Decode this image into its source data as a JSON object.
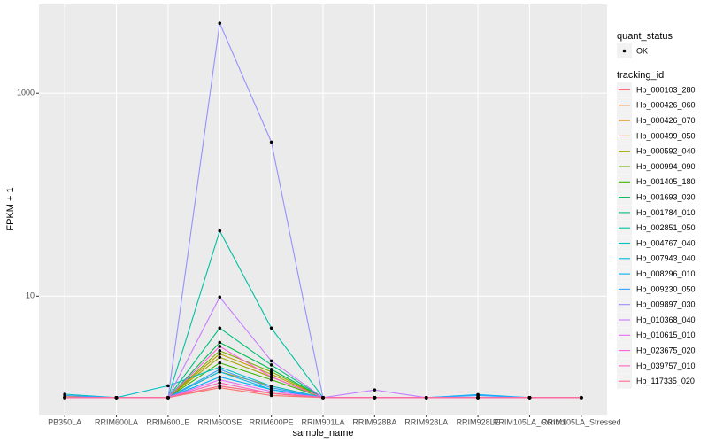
{
  "chart_data": {
    "type": "line",
    "x_label": "sample_name",
    "y_label": "FPKM + 1",
    "log_y": true,
    "grid": true,
    "point_legend_title": "quant_status",
    "point_legend_entry": "OK",
    "point_color": "#000000",
    "legend_title": "tracking_id",
    "categories": [
      "PB350LA",
      "RRIM600LA",
      "RRIM600LE",
      "RRIM600SE",
      "RRIM600PE",
      "RRIM901LA",
      "RRIM928BA",
      "RRIM928LA",
      "RRIM928LE",
      "RRIM105LA_Control",
      "RRIM105LA_Stressed"
    ],
    "ylim": [
      0.68,
      7500
    ],
    "yticks": [
      10,
      1000
    ],
    "series": [
      {
        "name": "Hb_000103_280",
        "color": "#F8766D",
        "values": [
          1.02,
          1,
          1,
          1.25,
          1.05,
          1,
          1,
          1,
          1,
          1,
          1
        ]
      },
      {
        "name": "Hb_000426_060",
        "color": "#EA8331",
        "values": [
          1.02,
          1,
          1,
          1.3,
          1.1,
          1,
          1,
          1,
          1,
          1,
          1
        ]
      },
      {
        "name": "Hb_000426_070",
        "color": "#D89000",
        "values": [
          1,
          1,
          1,
          1.8,
          1.3,
          1,
          1,
          1,
          1,
          1,
          1
        ]
      },
      {
        "name": "Hb_000499_050",
        "color": "#C09B00",
        "values": [
          1,
          1,
          1,
          2.7,
          1.7,
          1,
          1,
          1,
          1,
          1,
          1
        ]
      },
      {
        "name": "Hb_000592_040",
        "color": "#A3A500",
        "values": [
          1,
          1,
          1,
          2.5,
          1.6,
          1,
          1,
          1,
          1,
          1,
          1
        ]
      },
      {
        "name": "Hb_000994_090",
        "color": "#7CAE00",
        "values": [
          1,
          1,
          1,
          2.9,
          1.8,
          1,
          1,
          1,
          1,
          1,
          1
        ]
      },
      {
        "name": "Hb_001405_180",
        "color": "#39B600",
        "values": [
          1,
          1,
          1,
          2.2,
          1.5,
          1,
          1,
          1,
          1,
          1,
          1
        ]
      },
      {
        "name": "Hb_001693_030",
        "color": "#00BB4E",
        "values": [
          1,
          1,
          1,
          3.5,
          1.9,
          1,
          1,
          1,
          1,
          1,
          1
        ]
      },
      {
        "name": "Hb_001784_010",
        "color": "#00BF7D",
        "values": [
          1,
          1,
          1,
          4.85,
          2.1,
          1,
          1,
          1,
          1,
          1,
          1
        ]
      },
      {
        "name": "Hb_002851_050",
        "color": "#00C1A3",
        "values": [
          1,
          1,
          1,
          44,
          4.85,
          1,
          1,
          1,
          1,
          1,
          1
        ]
      },
      {
        "name": "Hb_004767_040",
        "color": "#00BFC4",
        "values": [
          1.08,
          1,
          1.31,
          2,
          1.3,
          1,
          1,
          1,
          1,
          1,
          1
        ]
      },
      {
        "name": "Hb_007943_040",
        "color": "#00BAE0",
        "values": [
          1,
          1,
          1,
          1.8,
          1.2,
          1,
          1,
          1,
          1,
          1,
          1
        ]
      },
      {
        "name": "Hb_008296_010",
        "color": "#00B0F6",
        "values": [
          1,
          1,
          1,
          1.6,
          1.2,
          1,
          1,
          1,
          1.07,
          1,
          1
        ]
      },
      {
        "name": "Hb_009230_050",
        "color": "#35A2FF",
        "values": [
          1.05,
          1,
          1,
          1.9,
          1.25,
          1,
          1,
          1,
          1.05,
          1,
          1
        ]
      },
      {
        "name": "Hb_009897_030",
        "color": "#9590FF",
        "values": [
          1,
          1,
          1,
          4900,
          330,
          1,
          1,
          1,
          1,
          1,
          1
        ]
      },
      {
        "name": "Hb_010368_040",
        "color": "#C77CFF",
        "values": [
          1,
          1,
          1,
          9.8,
          2.3,
          1,
          1.19,
          1,
          1,
          1,
          1
        ]
      },
      {
        "name": "Hb_010615_010",
        "color": "#E76BF3",
        "values": [
          1,
          1,
          1,
          1.5,
          1.15,
          1,
          1,
          1,
          1,
          1,
          1
        ]
      },
      {
        "name": "Hb_023675_020",
        "color": "#FA62DB",
        "values": [
          1,
          1,
          1,
          3.2,
          1.6,
          1,
          1,
          1,
          1,
          1,
          1
        ]
      },
      {
        "name": "Hb_039757_010",
        "color": "#FF62BC",
        "values": [
          1,
          1,
          1,
          1.4,
          1.1,
          1,
          1,
          1,
          1,
          1,
          1
        ]
      },
      {
        "name": "Hb_117335_020",
        "color": "#FF6C91",
        "values": [
          1,
          1,
          1,
          1.3,
          1.1,
          1,
          1,
          1,
          1,
          1,
          1
        ]
      }
    ]
  }
}
